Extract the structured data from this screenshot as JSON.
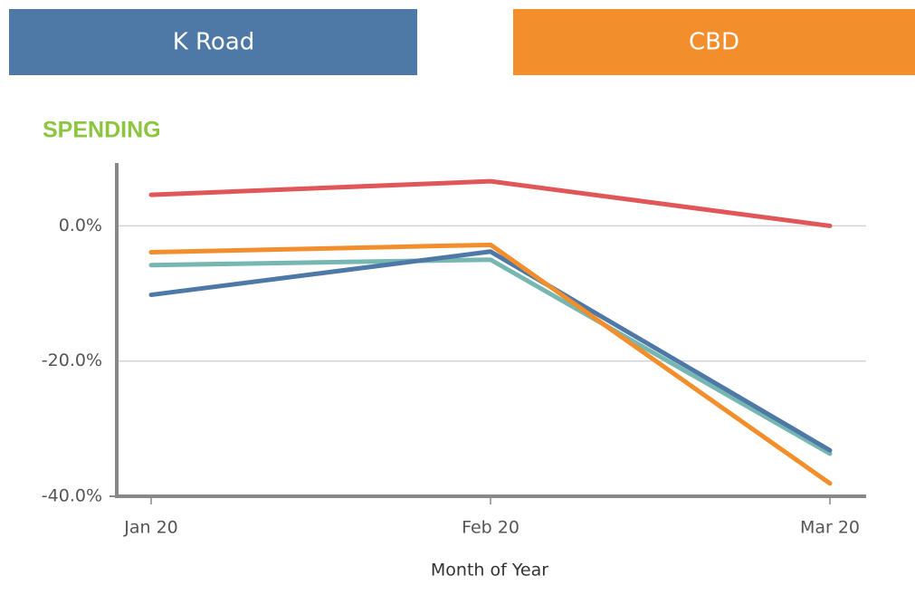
{
  "buttons": [
    "K Road",
    "CBD"
  ],
  "chart_data": {
    "type": "line",
    "title": "SPENDING",
    "x_label": "Month of Year",
    "categories": [
      "Jan 20",
      "Feb 20",
      "Mar 20"
    ],
    "series": [
      {
        "color": "#e15759",
        "values": [
          4.6,
          6.6,
          0.0
        ]
      },
      {
        "color": "#76b7b2",
        "values": [
          -5.8,
          -5.0,
          -33.7
        ]
      },
      {
        "color": "#4e79a7",
        "values": [
          -10.2,
          -3.8,
          -33.2
        ]
      },
      {
        "color": "#f28e2b",
        "values": [
          -3.9,
          -2.8,
          -38.1
        ]
      }
    ],
    "ylim": [
      -40,
      9.3
    ],
    "yticks": [
      {
        "value": 0,
        "label": "0.0%"
      },
      {
        "value": -20,
        "label": "-20.0%"
      },
      {
        "value": -40,
        "label": "-40.0%"
      }
    ],
    "grid": true
  }
}
